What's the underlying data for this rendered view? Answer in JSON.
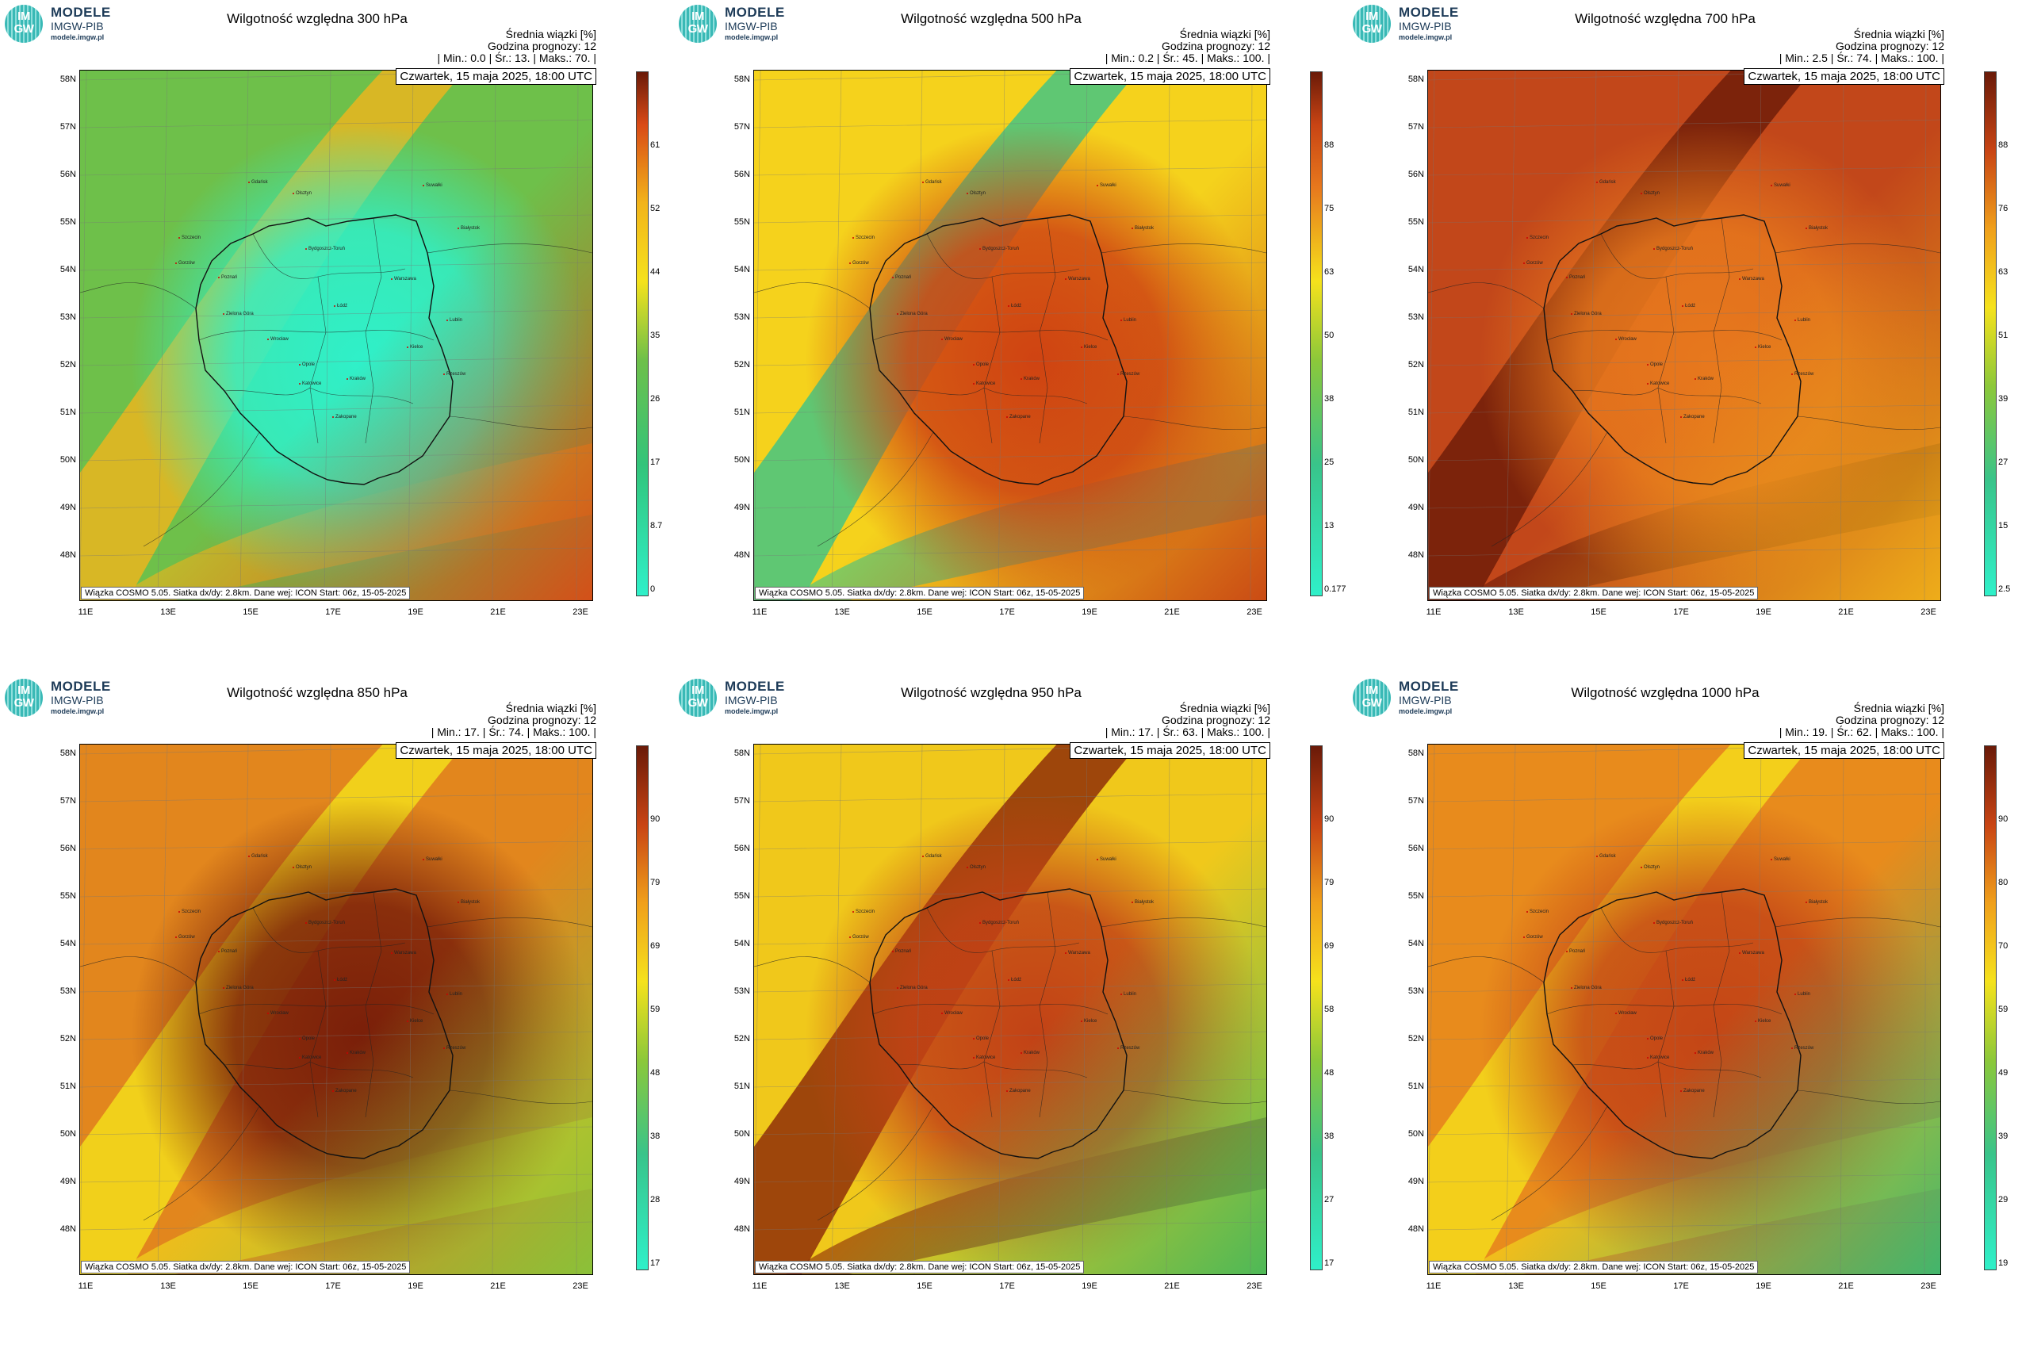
{
  "logo": {
    "letters_top": "IM",
    "letters_bottom": "GW",
    "name": "MODELE",
    "org": "IMGW-PIB",
    "url": "modele.imgw.pl"
  },
  "labels": {
    "stat_line1": "Średnia wiązki [%]",
    "stat_line2": "Godzina prognozy: 12",
    "date": "Czwartek, 15 maja 2025, 18:00 UTC",
    "footer": "Wiązka COSMO 5.05. Siatka dx/dy: 2.8km. Dane wej: ICON Start: 06z, 15-05-2025"
  },
  "axes": {
    "lat": [
      "58N",
      "57N",
      "56N",
      "55N",
      "54N",
      "53N",
      "52N",
      "51N",
      "50N",
      "49N",
      "48N"
    ],
    "lon": [
      "11E",
      "13E",
      "15E",
      "17E",
      "19E",
      "21E",
      "23E"
    ]
  },
  "cities": [
    "Gdańsk",
    "Olsztyn",
    "Suwałki",
    "Szczecin",
    "Białystok",
    "Bydgoszcz-Toruń",
    "Gorzów",
    "Poznań",
    "Warszawa",
    "Zielona Góra",
    "Łódź",
    "Lublin",
    "Wrocław",
    "Kielce",
    "Opole",
    "Rzeszów",
    "Katowice",
    "Kraków",
    "Zakopane"
  ],
  "panels": [
    {
      "title": "Wilgotność względna 300 hPa",
      "stats": "| Min.:     0.0 | Śr.:      13. | Maks.:      70. |",
      "colorbar_ticks": [
        "61",
        "52",
        "44",
        "35",
        "26",
        "17",
        "8.7",
        "0"
      ],
      "colors": {
        "base": "#6ec04a",
        "center": "#2ff0c9",
        "band": "#f2b41b",
        "corner": "#d94a16"
      }
    },
    {
      "title": "Wilgotność względna 500 hPa",
      "stats": "| Min.:     0.2 | Śr.:      45. | Maks.:     100. |",
      "colorbar_ticks": [
        "88",
        "75",
        "63",
        "50",
        "38",
        "25",
        "13",
        "0.177"
      ],
      "colors": {
        "base": "#f5d21c",
        "center": "#cf4312",
        "band": "#39c48a",
        "corner": "#c84414"
      }
    },
    {
      "title": "Wilgotność względna 700 hPa",
      "stats": "| Min.:     2.5 | Śr.:      74. | Maks.:     100. |",
      "colorbar_ticks": [
        "88",
        "76",
        "63",
        "51",
        "39",
        "27",
        "15",
        "2.5"
      ],
      "colors": {
        "base": "#c2471a",
        "center": "#e7781d",
        "band": "#6a1a08",
        "corner": "#f0b21a"
      }
    },
    {
      "title": "Wilgotność względna 850 hPa",
      "stats": "| Min.:      17. | Śr.:      74. | Maks.:     100. |",
      "colorbar_ticks": [
        "90",
        "79",
        "69",
        "59",
        "48",
        "38",
        "28",
        "17"
      ],
      "colors": {
        "base": "#e2861d",
        "center": "#7a1f09",
        "band": "#f5e21c",
        "corner": "#86c43a"
      }
    },
    {
      "title": "Wilgotność względna 950 hPa",
      "stats": "| Min.:      17. | Śr.:      63. | Maks.:     100. |",
      "colorbar_ticks": [
        "90",
        "79",
        "69",
        "58",
        "48",
        "38",
        "27",
        "17"
      ],
      "colors": {
        "base": "#f0c81b",
        "center": "#c24216",
        "band": "#8a2608",
        "corner": "#45b85a"
      }
    },
    {
      "title": "Wilgotność względna 1000 hPa",
      "stats": "| Min.:      19. | Śr.:      62. | Maks.:     100. |",
      "colorbar_ticks": [
        "90",
        "80",
        "70",
        "59",
        "49",
        "39",
        "29",
        "19"
      ],
      "colors": {
        "base": "#e88b1c",
        "center": "#c44616",
        "band": "#f5e01c",
        "corner": "#3ab870"
      }
    }
  ]
}
